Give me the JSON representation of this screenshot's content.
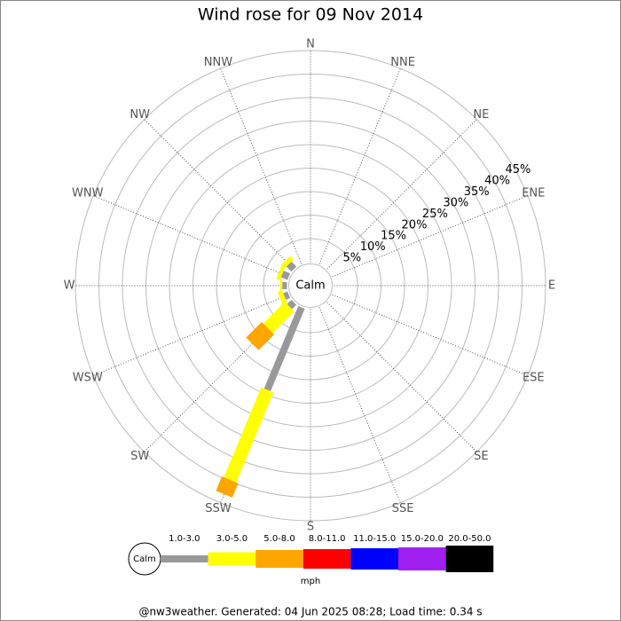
{
  "chart_data": {
    "type": "windrose",
    "title": "Wind rose for 09 Nov 2014",
    "categories": [
      "N",
      "NNE",
      "NE",
      "ENE",
      "E",
      "ESE",
      "SE",
      "SSE",
      "S",
      "SSW",
      "SW",
      "WSW",
      "W",
      "WNW",
      "NW",
      "NNW"
    ],
    "calm_label": "Calm",
    "unit": "mph",
    "footer": "@nw3weather. Generated: 04 Jun 2025 08:28; Load time: 0.34 s",
    "rlim": [
      0,
      45
    ],
    "rticks": [
      {
        "value": 5,
        "label": "5%"
      },
      {
        "value": 10,
        "label": "10%"
      },
      {
        "value": 15,
        "label": "15%"
      },
      {
        "value": 20,
        "label": "20%"
      },
      {
        "value": 25,
        "label": "25%"
      },
      {
        "value": 30,
        "label": "30%"
      },
      {
        "value": 35,
        "label": "35%"
      },
      {
        "value": 40,
        "label": "40%"
      },
      {
        "value": 45,
        "label": "45%"
      }
    ],
    "series": [
      {
        "name": "1.0-3.0",
        "color": "#999999",
        "values": [
          0,
          0,
          0,
          0,
          0,
          0,
          0,
          0,
          0,
          19,
          1.3,
          1,
          1,
          1.5,
          1.5,
          0
        ]
      },
      {
        "name": "3.0-5.0",
        "color": "#ffff00",
        "values": [
          0,
          0,
          0,
          0,
          0,
          0,
          0,
          0,
          0,
          20.7,
          6.5,
          1,
          0.5,
          0.8,
          1,
          0
        ]
      },
      {
        "name": "5.0-8.0",
        "color": "#ffa500",
        "values": [
          0,
          0,
          0,
          0,
          0,
          0,
          0,
          0,
          0,
          3.3,
          4.7,
          0,
          0,
          0,
          0,
          0
        ]
      },
      {
        "name": "8.0-11.0",
        "color": "#ff0000",
        "values": [
          0,
          0,
          0,
          0,
          0,
          0,
          0,
          0,
          0,
          0,
          0,
          0,
          0,
          0,
          0,
          0
        ]
      },
      {
        "name": "11.0-15.0",
        "color": "#0000ff",
        "values": [
          0,
          0,
          0,
          0,
          0,
          0,
          0,
          0,
          0,
          0,
          0,
          0,
          0,
          0,
          0,
          0
        ]
      },
      {
        "name": "15.0-20.0",
        "color": "#a020f0",
        "values": [
          0,
          0,
          0,
          0,
          0,
          0,
          0,
          0,
          0,
          0,
          0,
          0,
          0,
          0,
          0,
          0
        ]
      },
      {
        "name": "20.0-50.0",
        "color": "#000000",
        "values": [
          0,
          0,
          0,
          0,
          0,
          0,
          0,
          0,
          0,
          0,
          0,
          0,
          0,
          0,
          0,
          0
        ]
      }
    ]
  }
}
